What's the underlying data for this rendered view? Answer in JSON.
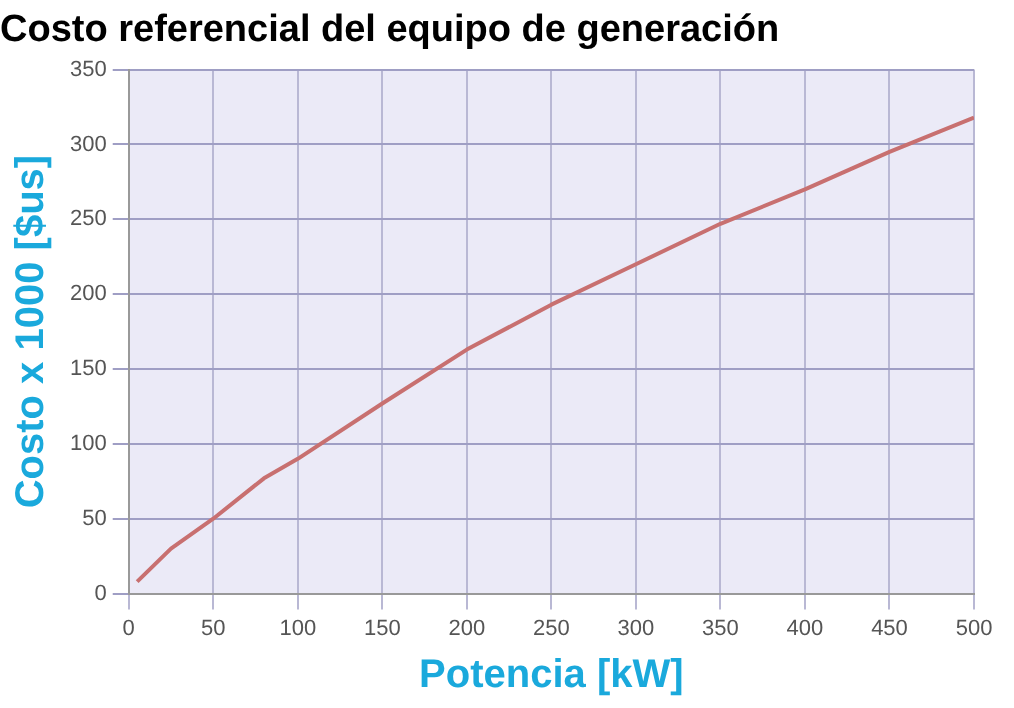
{
  "chart_data": {
    "type": "line",
    "title": "Costo referencial del equipo de generación",
    "xlabel": "Potencia [kW]",
    "ylabel": "Costo x 1000 [$us]",
    "x": [
      5,
      25,
      50,
      80,
      100,
      150,
      200,
      250,
      300,
      350,
      400,
      450,
      500
    ],
    "series": [
      {
        "color": "#c87070",
        "values": [
          8,
          30,
          50,
          77,
          90,
          127,
          163,
          193,
          220,
          247,
          270,
          295,
          318
        ]
      }
    ],
    "xlim": [
      0,
      500
    ],
    "xticks": [
      0,
      50,
      100,
      150,
      200,
      250,
      300,
      350,
      400,
      450,
      500
    ],
    "ylim": [
      0,
      350
    ],
    "yticks": [
      0,
      50,
      100,
      150,
      200,
      250,
      300,
      350
    ],
    "grid": true,
    "legend": false,
    "marker": "none",
    "line_style": "solid"
  }
}
